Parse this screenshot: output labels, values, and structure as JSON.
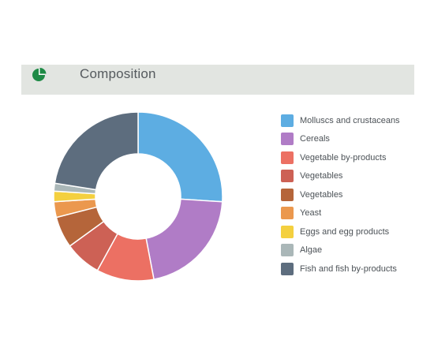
{
  "header": {
    "icon": "pie-chart-icon",
    "icon_color": "#1e8a46",
    "title": "Composition"
  },
  "chart_data": {
    "type": "pie",
    "donut": true,
    "legend_position": "right",
    "start_angle_deg": 0,
    "direction": "clockwise",
    "series": [
      {
        "name": "Molluscs and crustaceans",
        "value": 26,
        "color": "#5dade2"
      },
      {
        "name": "Cereals",
        "value": 21,
        "color": "#b07cc6"
      },
      {
        "name": "Vegetable by-products",
        "value": 11,
        "color": "#ec7063"
      },
      {
        "name": "Vegetables",
        "value": 7,
        "color": "#cd6155"
      },
      {
        "name": "Vegetables",
        "value": 6,
        "color": "#b5653a"
      },
      {
        "name": "Yeast",
        "value": 3,
        "color": "#eb984e"
      },
      {
        "name": "Eggs and egg products",
        "value": 2,
        "color": "#f4d03f"
      },
      {
        "name": "Algae",
        "value": 1.5,
        "color": "#aab7b8"
      },
      {
        "name": "Fish and fish by-products",
        "value": 22.5,
        "color": "#5d6d7e"
      }
    ]
  }
}
